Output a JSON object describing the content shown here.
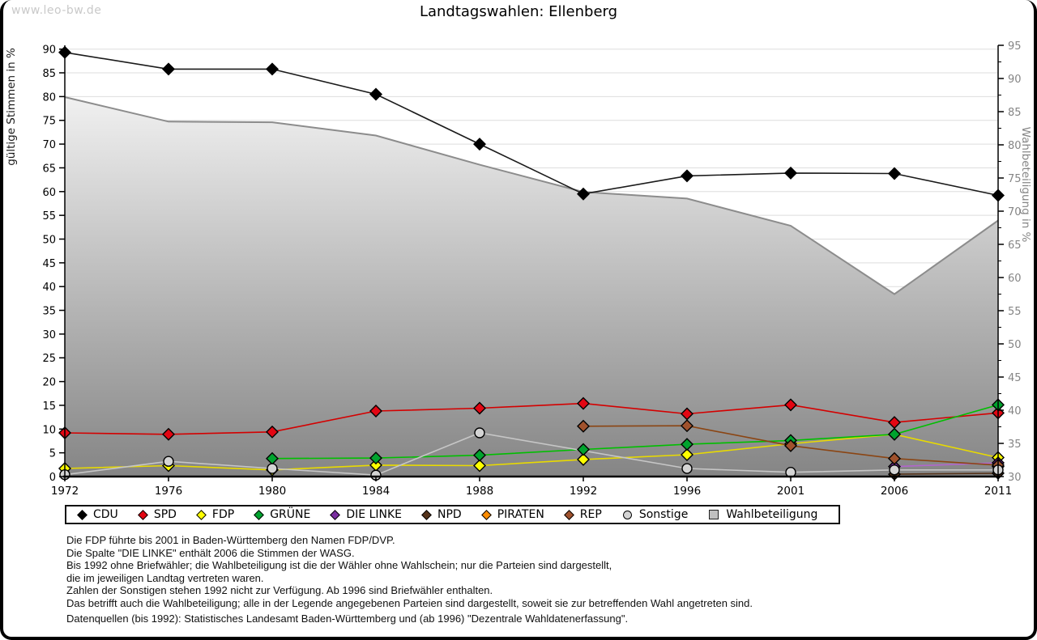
{
  "watermark": "www.leo-bw.de",
  "title": "Landtagswahlen: Ellenberg",
  "chart_data": {
    "type": "line",
    "x": [
      1972,
      1976,
      1980,
      1984,
      1988,
      1992,
      1996,
      2001,
      2006,
      2011
    ],
    "left_axis": {
      "label": "gültige Stimmen in %",
      "min": 0,
      "max": 90.8,
      "ticks": [
        0,
        5,
        10,
        15,
        20,
        25,
        30,
        35,
        40,
        45,
        50,
        55,
        60,
        65,
        70,
        75,
        80,
        85,
        90
      ]
    },
    "right_axis": {
      "label": "Wahlbeteiligung in %",
      "min": 30,
      "max": 95,
      "ticks": [
        30,
        35,
        40,
        45,
        50,
        55,
        60,
        65,
        70,
        75,
        80,
        85,
        90,
        95
      ]
    },
    "grid": true,
    "legend_position": "bottom",
    "series": [
      {
        "name": "CDU",
        "axis": "left",
        "marker": "diamond",
        "color": "#000000",
        "line_color": "#1a1a1a",
        "values": [
          89.3,
          85.8,
          85.8,
          80.5,
          70.0,
          59.5,
          63.3,
          63.9,
          63.8,
          59.2
        ]
      },
      {
        "name": "SPD",
        "axis": "left",
        "marker": "diamond",
        "color": "#e30613",
        "line_color": "#d40000",
        "values": [
          9.2,
          8.9,
          9.4,
          13.8,
          14.4,
          15.4,
          13.2,
          15.1,
          11.4,
          13.4
        ]
      },
      {
        "name": "FDP",
        "axis": "left",
        "marker": "diamond",
        "color": "#ffff00",
        "line_color": "#e8da00",
        "values": [
          1.7,
          2.3,
          1.4,
          2.4,
          2.3,
          3.6,
          4.6,
          6.9,
          8.9,
          4.0
        ]
      },
      {
        "name": "GRÜNE",
        "axis": "left",
        "marker": "diamond",
        "color": "#00a32e",
        "line_color": "#00bf00",
        "values": [
          null,
          null,
          3.8,
          3.9,
          4.5,
          5.7,
          6.8,
          7.6,
          8.9,
          15.1
        ]
      },
      {
        "name": "DIE LINKE",
        "axis": "left",
        "marker": "diamond",
        "color": "#7a2ea0",
        "line_color": "#b266cc",
        "values": [
          null,
          null,
          null,
          null,
          null,
          null,
          null,
          null,
          2.1,
          2.9
        ]
      },
      {
        "name": "NPD",
        "axis": "left",
        "marker": "diamond",
        "color": "#55331a",
        "line_color": "#55331a",
        "values": [
          null,
          null,
          null,
          null,
          null,
          null,
          null,
          null,
          0.5,
          0.7
        ]
      },
      {
        "name": "PIRATEN",
        "axis": "left",
        "marker": "diamond",
        "color": "#ff8c00",
        "line_color": "#ff8c00",
        "values": [
          null,
          null,
          null,
          null,
          null,
          null,
          null,
          null,
          null,
          2.1
        ]
      },
      {
        "name": "REP",
        "axis": "left",
        "marker": "diamond",
        "color": "#a0522d",
        "line_color": "#8b4513",
        "values": [
          null,
          null,
          null,
          null,
          null,
          10.6,
          10.7,
          6.5,
          3.8,
          2.4
        ]
      },
      {
        "name": "Sonstige",
        "axis": "left",
        "marker": "circle",
        "color": "#d4d4d4",
        "line_color": "#c6c6c6",
        "values": [
          0.4,
          3.2,
          1.7,
          0.3,
          9.2,
          null,
          1.7,
          0.9,
          1.4,
          1.4
        ]
      },
      {
        "name": "Wahlbeteiligung",
        "axis": "right",
        "marker": "square",
        "type": "area",
        "color": "#c0c0c0",
        "line_color": "#8c8c8c",
        "area_gradient_top": "#ffffff",
        "area_gradient_bottom": "#858585",
        "values": [
          87.2,
          83.5,
          83.4,
          81.4,
          77.0,
          72.9,
          71.9,
          67.8,
          57.5,
          68.6
        ]
      }
    ]
  },
  "footnotes": [
    "Die FDP führte bis 2001 in Baden-Württemberg den Namen FDP/DVP.",
    "Die Spalte \"DIE LINKE\" enthält 2006 die Stimmen der WASG.",
    "Bis 1992 ohne Briefwähler; die Wahlbeteiligung ist die der Wähler ohne Wahlschein; nur die Parteien sind dargestellt,",
    "die im jeweiligen Landtag vertreten waren.",
    "Zahlen der Sonstigen stehen 1992 nicht zur Verfügung. Ab 1996 sind Briefwähler enthalten.",
    "Das betrifft auch die Wahlbeteiligung; alle in der Legende angegebenen Parteien sind dargestellt, soweit sie zur betreffenden Wahl angetreten sind."
  ],
  "source_line": "Datenquellen (bis 1992): Statistisches Landesamt Baden-Württemberg und (ab 1996) \"Dezentrale Wahldatenerfassung\".",
  "colors": {
    "grid": "#dedede",
    "axis": "#000000",
    "right_axis_text": "#858585",
    "watermark": "#c9c9c9"
  }
}
